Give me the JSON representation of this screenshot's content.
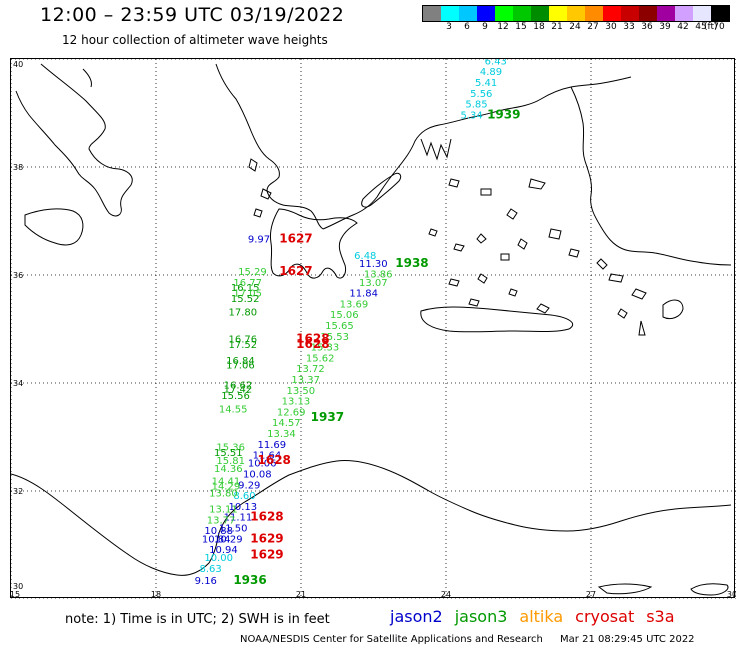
{
  "header": {
    "title": "12:00 – 23:59 UTC 03/19/2022",
    "subtitle": "12 hour collection of altimeter wave heights"
  },
  "legend": {
    "colors": [
      "#808080",
      "#00ffff",
      "#00c8ff",
      "#0000ff",
      "#00ff00",
      "#00c800",
      "#008c00",
      "#ffff00",
      "#ffc800",
      "#ff8c00",
      "#ff0000",
      "#c80000",
      "#8c0000",
      "#a000a0",
      "#d2a0ff",
      "#e6e6ff",
      "#000000"
    ],
    "labels": [
      "3",
      "6",
      "9",
      "12",
      "15",
      "18",
      "21",
      "24",
      "27",
      "30",
      "33",
      "36",
      "39",
      "42",
      "45",
      "70"
    ],
    "unit": "(ft)"
  },
  "axes": {
    "x_ticks": [
      "15",
      "18",
      "21",
      "24",
      "27",
      "30"
    ],
    "y_ticks": [
      "40",
      "38",
      "36",
      "34",
      "32",
      "30"
    ]
  },
  "satellite_colors": {
    "jason2": "#0000cc",
    "jason3": "#009900",
    "altika": "#ff9900",
    "cryosat": "#dd0000",
    "s3a": "#dd0000",
    "cyan": "#00ccdd",
    "lightgreen": "#33cc33"
  },
  "observations": [
    {
      "text": "6.43",
      "color": "#00ccdd",
      "lon": 24.8,
      "lat": 39.9
    },
    {
      "text": "4.89",
      "color": "#00ccdd",
      "lon": 24.7,
      "lat": 39.7
    },
    {
      "text": "5.41",
      "color": "#00ccdd",
      "lon": 24.6,
      "lat": 39.5
    },
    {
      "text": "5.56",
      "color": "#00ccdd",
      "lon": 24.5,
      "lat": 39.3
    },
    {
      "text": "5.85",
      "color": "#00ccdd",
      "lon": 24.4,
      "lat": 39.1
    },
    {
      "text": "5.34",
      "color": "#00ccdd",
      "lon": 24.3,
      "lat": 38.9
    },
    {
      "text": "9.97",
      "color": "#0000cc",
      "lon": 19.9,
      "lat": 36.6
    },
    {
      "text": "6.48",
      "color": "#00ccdd",
      "lon": 22.1,
      "lat": 36.3
    },
    {
      "text": "11.30",
      "color": "#0000cc",
      "lon": 22.2,
      "lat": 36.15
    },
    {
      "text": "13.86",
      "color": "#33cc33",
      "lon": 22.3,
      "lat": 35.95
    },
    {
      "text": "13.07",
      "color": "#33cc33",
      "lon": 22.2,
      "lat": 35.8
    },
    {
      "text": "11.84",
      "color": "#0000cc",
      "lon": 22.0,
      "lat": 35.6
    },
    {
      "text": "13.69",
      "color": "#33cc33",
      "lon": 21.8,
      "lat": 35.4
    },
    {
      "text": "15.06",
      "color": "#33cc33",
      "lon": 21.6,
      "lat": 35.2
    },
    {
      "text": "15.65",
      "color": "#33cc33",
      "lon": 21.5,
      "lat": 35.0
    },
    {
      "text": "15.53",
      "color": "#33cc33",
      "lon": 21.4,
      "lat": 34.8
    },
    {
      "text": "15.33",
      "color": "#33cc33",
      "lon": 21.2,
      "lat": 34.6
    },
    {
      "text": "15.62",
      "color": "#33cc33",
      "lon": 21.1,
      "lat": 34.4
    },
    {
      "text": "13.72",
      "color": "#33cc33",
      "lon": 20.9,
      "lat": 34.2
    },
    {
      "text": "13.37",
      "color": "#33cc33",
      "lon": 20.8,
      "lat": 34.0
    },
    {
      "text": "13.50",
      "color": "#33cc33",
      "lon": 20.7,
      "lat": 33.8
    },
    {
      "text": "13.13",
      "color": "#33cc33",
      "lon": 20.6,
      "lat": 33.6
    },
    {
      "text": "12.69",
      "color": "#33cc33",
      "lon": 20.5,
      "lat": 33.4
    },
    {
      "text": "14.57",
      "color": "#33cc33",
      "lon": 20.4,
      "lat": 33.2
    },
    {
      "text": "13.34",
      "color": "#33cc33",
      "lon": 20.3,
      "lat": 33.0
    },
    {
      "text": "11.69",
      "color": "#0000cc",
      "lon": 20.1,
      "lat": 32.8
    },
    {
      "text": "11.64",
      "color": "#0000cc",
      "lon": 20.0,
      "lat": 32.6
    },
    {
      "text": "10.06",
      "color": "#0000cc",
      "lon": 19.9,
      "lat": 32.45
    },
    {
      "text": "10.08",
      "color": "#0000cc",
      "lon": 19.8,
      "lat": 32.25
    },
    {
      "text": "9.29",
      "color": "#0000cc",
      "lon": 19.7,
      "lat": 32.05
    },
    {
      "text": "8.60",
      "color": "#00ccdd",
      "lon": 19.6,
      "lat": 31.85
    },
    {
      "text": "10.13",
      "color": "#0000cc",
      "lon": 19.5,
      "lat": 31.65
    },
    {
      "text": "11.11",
      "color": "#0000cc",
      "lon": 19.4,
      "lat": 31.45
    },
    {
      "text": "11.50",
      "color": "#0000cc",
      "lon": 19.3,
      "lat": 31.25
    },
    {
      "text": "10.29",
      "color": "#0000cc",
      "lon": 19.2,
      "lat": 31.05
    },
    {
      "text": "10.94",
      "color": "#0000cc",
      "lon": 19.1,
      "lat": 30.85
    },
    {
      "text": "10.00",
      "color": "#00ccdd",
      "lon": 19.0,
      "lat": 30.7
    },
    {
      "text": "8.63",
      "color": "#00ccdd",
      "lon": 18.9,
      "lat": 30.5
    },
    {
      "text": "9.16",
      "color": "#0000cc",
      "lon": 18.8,
      "lat": 30.28
    },
    {
      "text": "15.29",
      "color": "#33cc33",
      "lon": 19.7,
      "lat": 36.0
    },
    {
      "text": "16.77",
      "color": "#33cc33",
      "lon": 19.6,
      "lat": 35.8
    },
    {
      "text": "16.15",
      "color": "#009900",
      "lon": 19.55,
      "lat": 35.7
    },
    {
      "text": "17.05",
      "color": "#33cc33",
      "lon": 19.6,
      "lat": 35.6
    },
    {
      "text": "15.52",
      "color": "#009900",
      "lon": 19.55,
      "lat": 35.5
    },
    {
      "text": "17.80",
      "color": "#009900",
      "lon": 19.5,
      "lat": 35.25
    },
    {
      "text": "16.76",
      "color": "#009900",
      "lon": 19.5,
      "lat": 34.75
    },
    {
      "text": "17.52",
      "color": "#009900",
      "lon": 19.5,
      "lat": 34.65
    },
    {
      "text": "16.84",
      "color": "#009900",
      "lon": 19.45,
      "lat": 34.35
    },
    {
      "text": "17.06",
      "color": "#009900",
      "lon": 19.45,
      "lat": 34.27
    },
    {
      "text": "16.62",
      "color": "#009900",
      "lon": 19.4,
      "lat": 33.9
    },
    {
      "text": "17.42",
      "color": "#009900",
      "lon": 19.4,
      "lat": 33.82
    },
    {
      "text": "15.56",
      "color": "#009900",
      "lon": 19.35,
      "lat": 33.7
    },
    {
      "text": "14.55",
      "color": "#33cc33",
      "lon": 19.3,
      "lat": 33.45
    },
    {
      "text": "15.36",
      "color": "#33cc33",
      "lon": 19.25,
      "lat": 32.75
    },
    {
      "text": "15.51",
      "color": "#009900",
      "lon": 19.2,
      "lat": 32.65
    },
    {
      "text": "15.81",
      "color": "#33cc33",
      "lon": 19.25,
      "lat": 32.5
    },
    {
      "text": "14.36",
      "color": "#33cc33",
      "lon": 19.2,
      "lat": 32.35
    },
    {
      "text": "14.41",
      "color": "#33cc33",
      "lon": 19.15,
      "lat": 32.12
    },
    {
      "text": "14.29",
      "color": "#33cc33",
      "lon": 19.15,
      "lat": 32.03
    },
    {
      "text": "13.80",
      "color": "#33cc33",
      "lon": 19.1,
      "lat": 31.9
    },
    {
      "text": "13.11",
      "color": "#33cc33",
      "lon": 19.1,
      "lat": 31.6
    },
    {
      "text": "13.77",
      "color": "#33cc33",
      "lon": 19.05,
      "lat": 31.4
    },
    {
      "text": "10.88",
      "color": "#0000cc",
      "lon": 19.0,
      "lat": 31.2
    },
    {
      "text": "10.84",
      "color": "#0000cc",
      "lon": 18.95,
      "lat": 31.05
    }
  ],
  "track_times": [
    {
      "text": "1939",
      "color": "#009900",
      "lon": 24.85,
      "lat": 38.9
    },
    {
      "text": "1627",
      "color": "#dd0000",
      "lon": 20.55,
      "lat": 36.6
    },
    {
      "text": "1627",
      "color": "#dd0000",
      "lon": 20.55,
      "lat": 36.0
    },
    {
      "text": "1938",
      "color": "#009900",
      "lon": 22.95,
      "lat": 36.15
    },
    {
      "text": "1628",
      "color": "#dd0000",
      "lon": 20.9,
      "lat": 34.75
    },
    {
      "text": "1628",
      "color": "#dd0000",
      "lon": 20.9,
      "lat": 34.65
    },
    {
      "text": "1937",
      "color": "#009900",
      "lon": 21.2,
      "lat": 33.3
    },
    {
      "text": "1628",
      "color": "#dd0000",
      "lon": 20.1,
      "lat": 32.5
    },
    {
      "text": "1628",
      "color": "#dd0000",
      "lon": 19.95,
      "lat": 31.45
    },
    {
      "text": "1629",
      "color": "#dd0000",
      "lon": 19.95,
      "lat": 31.05
    },
    {
      "text": "1629",
      "color": "#dd0000",
      "lon": 19.95,
      "lat": 30.75
    },
    {
      "text": "1936",
      "color": "#009900",
      "lon": 19.6,
      "lat": 30.28
    }
  ],
  "footer": {
    "note": "note:  1) Time is in UTC; 2) SWH is in feet",
    "satellites": [
      {
        "name": "jason2",
        "color": "#0000cc"
      },
      {
        "name": "jason3",
        "color": "#009900"
      },
      {
        "name": "altika",
        "color": "#ff9900"
      },
      {
        "name": "cryosat",
        "color": "#dd0000"
      },
      {
        "name": "s3a",
        "color": "#dd0000"
      }
    ],
    "credit": "NOAA/NESDIS Center for Satellite Applications and Research",
    "timestamp": "Mar 21 08:29:45 UTC 2022"
  }
}
